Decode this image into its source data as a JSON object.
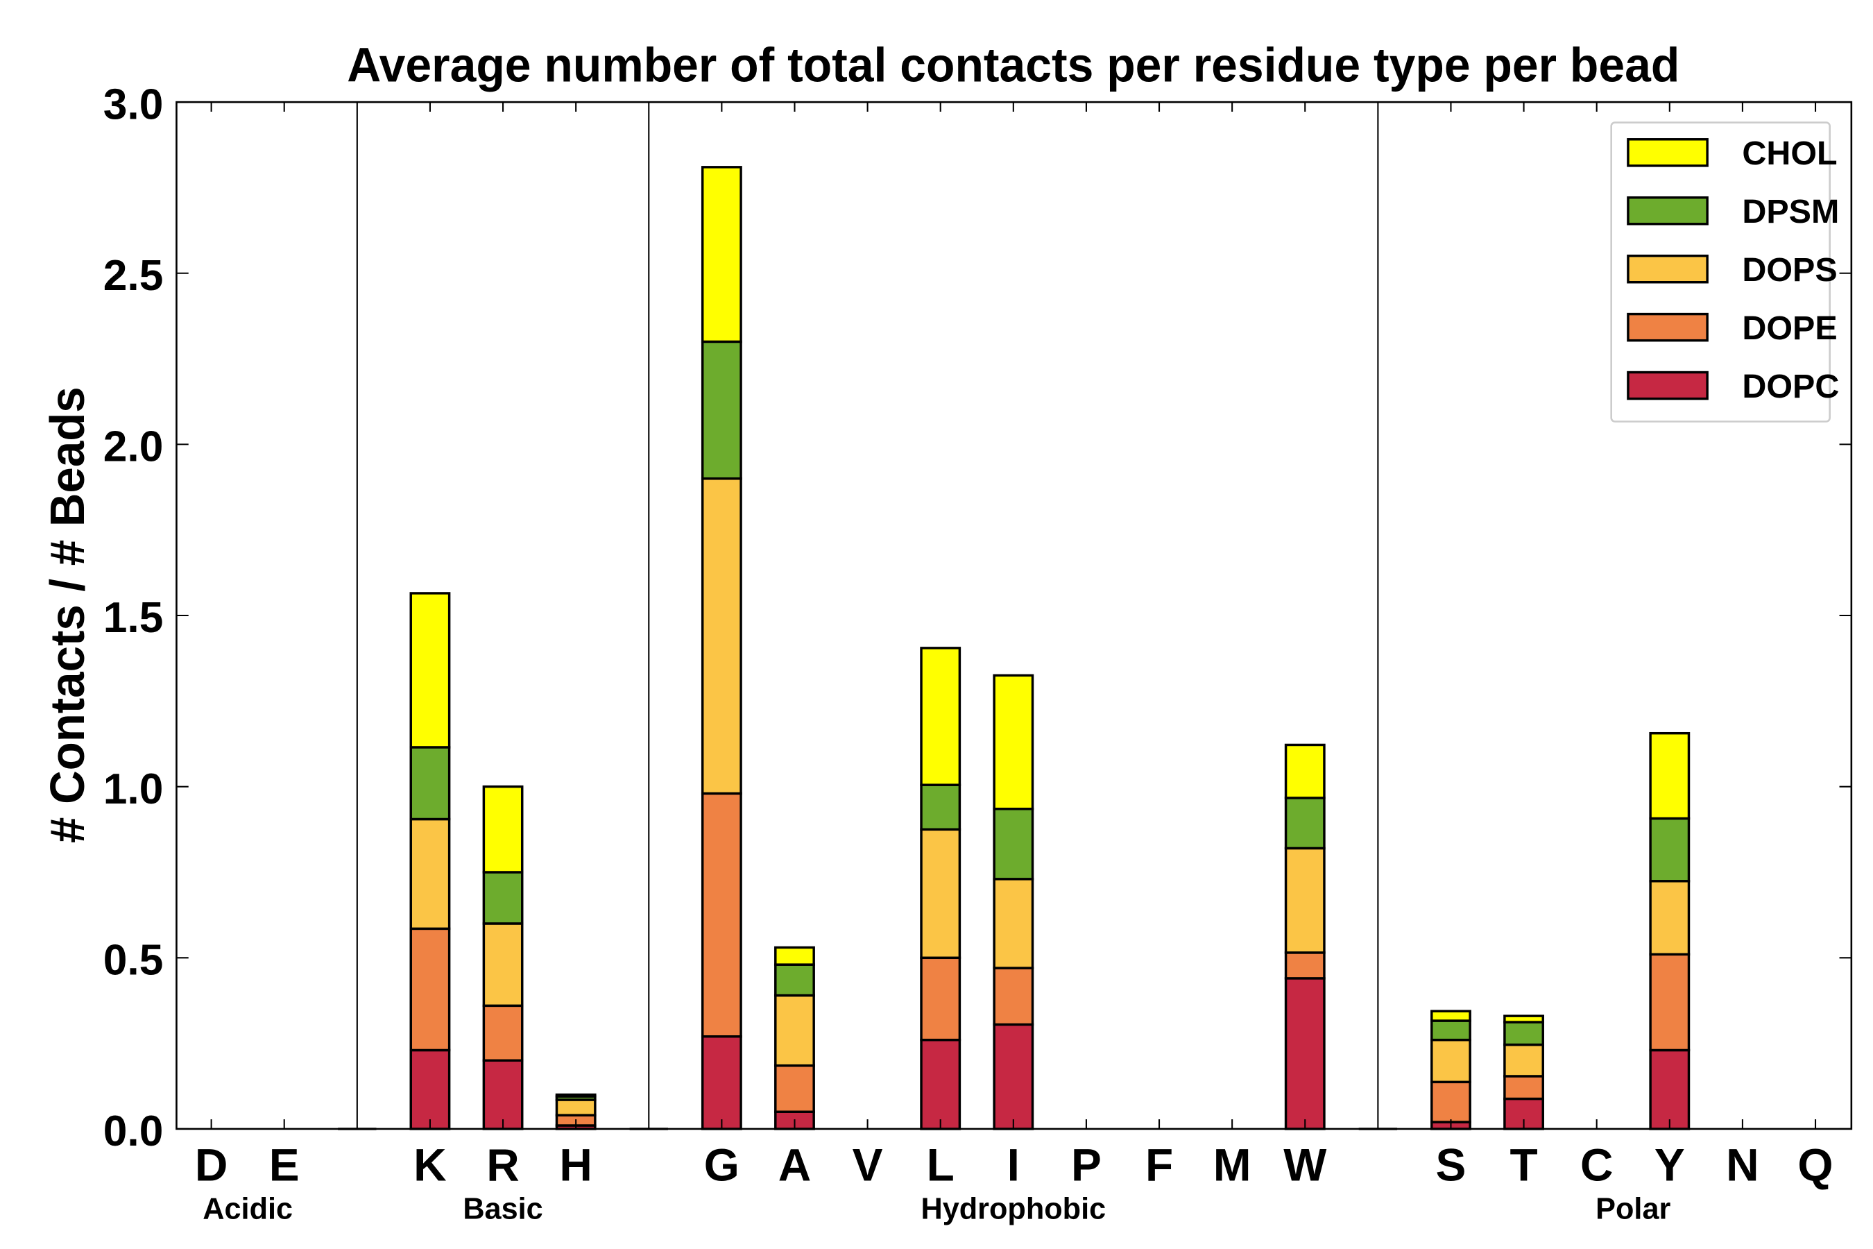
{
  "chart_data": {
    "type": "bar",
    "stacked": true,
    "title": "Average number of total contacts per residue type per bead",
    "xlabel": "",
    "ylabel": "# Contacts / # Beads",
    "ylim": [
      0,
      3.0
    ],
    "yticks": [
      "0.0",
      "0.5",
      "1.0",
      "1.5",
      "2.0",
      "2.5",
      "3.0"
    ],
    "ytick_values": [
      0,
      0.5,
      1.0,
      1.5,
      2.0,
      2.5,
      3.0
    ],
    "grid": false,
    "legend_position": "top-right",
    "categories": [
      "D",
      "E",
      "K",
      "R",
      "H",
      "G",
      "A",
      "V",
      "L",
      "I",
      "P",
      "F",
      "M",
      "W",
      "S",
      "T",
      "C",
      "Y",
      "N",
      "Q"
    ],
    "groups": [
      {
        "name": "Acidic",
        "categories": [
          "D",
          "E"
        ]
      },
      {
        "name": "Basic",
        "categories": [
          "K",
          "R",
          "H"
        ]
      },
      {
        "name": "Hydrophobic",
        "categories": [
          "G",
          "A",
          "V",
          "L",
          "I",
          "P",
          "F",
          "M",
          "W"
        ]
      },
      {
        "name": "Polar",
        "categories": [
          "S",
          "T",
          "C",
          "Y",
          "N",
          "Q"
        ]
      }
    ],
    "series": [
      {
        "name": "DOPC",
        "color": "#c62843",
        "values": [
          0,
          0,
          0.23,
          0.2,
          0.01,
          0.27,
          0.05,
          0,
          0.26,
          0.305,
          0,
          0,
          0,
          0.44,
          0.02,
          0.088,
          0,
          0.23,
          0,
          0
        ]
      },
      {
        "name": "DOPE",
        "color": "#ef8244",
        "values": [
          0,
          0,
          0.355,
          0.16,
          0.03,
          0.71,
          0.135,
          0,
          0.24,
          0.165,
          0,
          0,
          0,
          0.075,
          0.117,
          0.066,
          0,
          0.28,
          0,
          0
        ]
      },
      {
        "name": "DOPS",
        "color": "#fbc546",
        "values": [
          0,
          0,
          0.32,
          0.24,
          0.045,
          0.92,
          0.205,
          0,
          0.375,
          0.26,
          0,
          0,
          0,
          0.305,
          0.123,
          0.092,
          0,
          0.214,
          0,
          0
        ]
      },
      {
        "name": "DPSM",
        "color": "#6dac2d",
        "values": [
          0,
          0,
          0.21,
          0.15,
          0.01,
          0.4,
          0.09,
          0,
          0.13,
          0.205,
          0,
          0,
          0,
          0.147,
          0.056,
          0.066,
          0,
          0.183,
          0,
          0
        ]
      },
      {
        "name": "CHOL",
        "color": "#ffff00",
        "values": [
          0,
          0,
          0.45,
          0.25,
          0.005,
          0.51,
          0.05,
          0,
          0.4,
          0.39,
          0,
          0,
          0,
          0.155,
          0.028,
          0.018,
          0,
          0.249,
          0,
          0
        ]
      }
    ]
  }
}
